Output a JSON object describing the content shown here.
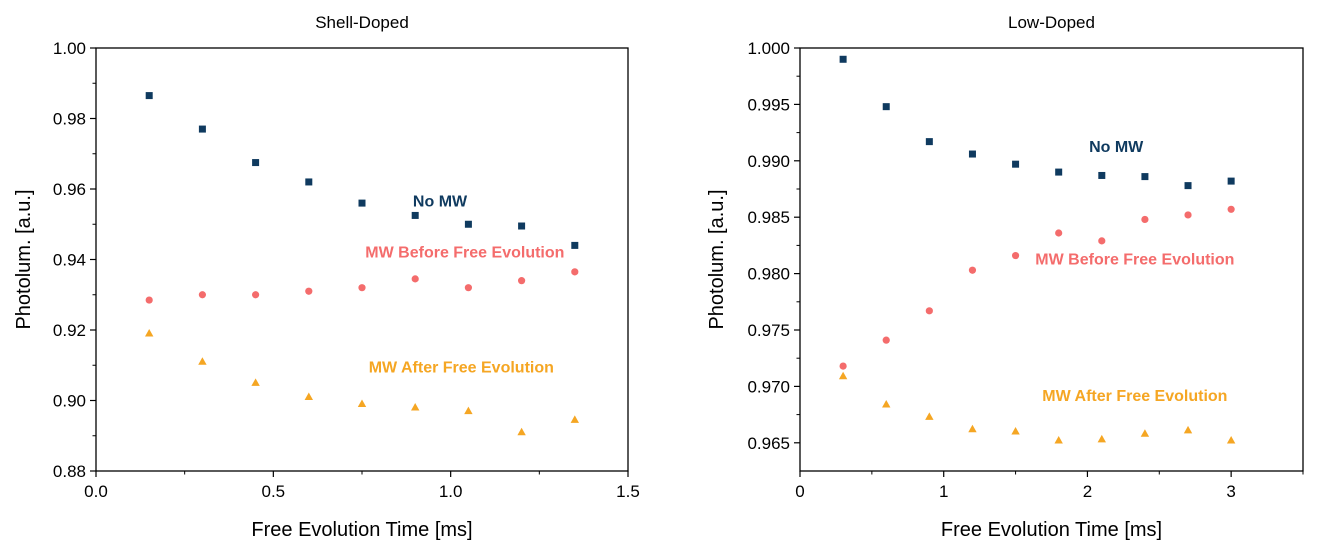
{
  "chart_data": [
    {
      "type": "scatter",
      "title": "Shell-Doped",
      "xlabel": "Free Evolution Time [ms]",
      "ylabel": "Photolum. [a.u.]",
      "xlim": [
        0.0,
        1.5
      ],
      "ylim": [
        0.88,
        1.0
      ],
      "xticks": [
        0.0,
        0.5,
        1.0,
        1.5
      ],
      "xtick_labels": [
        "0.0",
        "0.5",
        "1.0",
        "1.5"
      ],
      "yticks": [
        0.88,
        0.9,
        0.92,
        0.94,
        0.96,
        0.98,
        1.0
      ],
      "ytick_labels": [
        "0.88",
        "0.90",
        "0.92",
        "0.94",
        "0.96",
        "0.98",
        "1.00"
      ],
      "grid": false,
      "series": [
        {
          "name": "No MW",
          "marker": "square",
          "color": "#0f3a5f",
          "x": [
            0.15,
            0.3,
            0.45,
            0.6,
            0.75,
            0.9,
            1.05,
            1.2,
            1.35
          ],
          "y": [
            0.9865,
            0.977,
            0.9675,
            0.962,
            0.956,
            0.9525,
            0.95,
            0.9495,
            0.944
          ]
        },
        {
          "name": "MW Before Free Evolution",
          "marker": "circle",
          "color": "#f46c6c",
          "x": [
            0.15,
            0.3,
            0.45,
            0.6,
            0.75,
            0.9,
            1.05,
            1.2,
            1.35
          ],
          "y": [
            0.9285,
            0.93,
            0.93,
            0.931,
            0.932,
            0.9345,
            0.932,
            0.934,
            0.9365
          ]
        },
        {
          "name": "MW After Free Evolution",
          "marker": "triangle",
          "color": "#f5a623",
          "x": [
            0.15,
            0.3,
            0.45,
            0.6,
            0.75,
            0.9,
            1.05,
            1.2,
            1.35
          ],
          "y": [
            0.919,
            0.911,
            0.905,
            0.901,
            0.899,
            0.898,
            0.897,
            0.891,
            0.8945
          ]
        }
      ],
      "annotations": [
        {
          "text": "No MW",
          "series": 0,
          "x": 0.97,
          "y": 0.955
        },
        {
          "text": "MW Before Free Evolution",
          "series": 1,
          "x": 1.04,
          "y": 0.9405
        },
        {
          "text": "MW After Free Evolution",
          "series": 2,
          "x": 1.03,
          "y": 0.908
        }
      ]
    },
    {
      "type": "scatter",
      "title": "Low-Doped",
      "xlabel": "Free Evolution Time [ms]",
      "ylabel": "Photolum. [a.u.]",
      "xlim": [
        0.0,
        3.5
      ],
      "ylim": [
        0.9625,
        1.0
      ],
      "xticks": [
        0,
        1,
        2,
        3
      ],
      "xtick_labels": [
        "0",
        "1",
        "2",
        "3"
      ],
      "yticks": [
        0.965,
        0.97,
        0.975,
        0.98,
        0.985,
        0.99,
        0.995,
        1.0
      ],
      "ytick_labels": [
        "0.965",
        "0.970",
        "0.975",
        "0.980",
        "0.985",
        "0.990",
        "0.995",
        "1.000"
      ],
      "grid": false,
      "series": [
        {
          "name": "No MW",
          "marker": "square",
          "color": "#0f3a5f",
          "x": [
            0.3,
            0.6,
            0.9,
            1.2,
            1.5,
            1.8,
            2.1,
            2.4,
            2.7,
            3.0
          ],
          "y": [
            0.999,
            0.9948,
            0.9917,
            0.9906,
            0.9897,
            0.989,
            0.9887,
            0.9886,
            0.9878,
            0.9882
          ]
        },
        {
          "name": "MW Before Free Evolution",
          "marker": "circle",
          "color": "#f46c6c",
          "x": [
            0.3,
            0.6,
            0.9,
            1.2,
            1.5,
            1.8,
            2.1,
            2.4,
            2.7,
            3.0
          ],
          "y": [
            0.9718,
            0.9741,
            0.9767,
            0.9803,
            0.9816,
            0.9836,
            0.9829,
            0.9848,
            0.9852,
            0.9857
          ]
        },
        {
          "name": "MW After Free Evolution",
          "marker": "triangle",
          "color": "#f5a623",
          "x": [
            0.3,
            0.6,
            0.9,
            1.2,
            1.5,
            1.8,
            2.1,
            2.4,
            2.7,
            3.0
          ],
          "y": [
            0.9709,
            0.9684,
            0.9673,
            0.9662,
            0.966,
            0.9652,
            0.9653,
            0.9658,
            0.9661,
            0.9652
          ]
        }
      ],
      "annotations": [
        {
          "text": "No MW",
          "series": 0,
          "x": 2.2,
          "y": 0.9908
        },
        {
          "text": "MW Before Free Evolution",
          "series": 1,
          "x": 2.33,
          "y": 0.9808
        },
        {
          "text": "MW After Free Evolution",
          "series": 2,
          "x": 2.33,
          "y": 0.9687
        }
      ]
    }
  ]
}
